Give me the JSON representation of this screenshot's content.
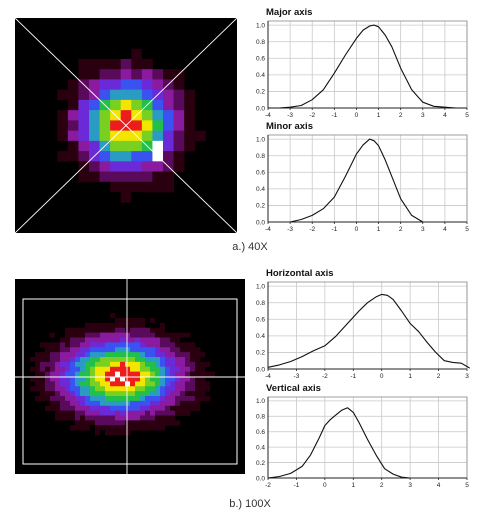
{
  "panels": [
    {
      "caption": "a.) 40X",
      "heatmap": {
        "type": "heatmap",
        "grid_size": 21,
        "center": [
          10.6,
          10.4
        ],
        "sigma": [
          3.2,
          3.2
        ],
        "overlay": "diagonal-cross",
        "hot_spots": [
          [
            13,
            12,
            1.06
          ],
          [
            13,
            13,
            1.1
          ]
        ],
        "palette": [
          "#000000",
          "#2a0010",
          "#5a0a5a",
          "#8a1aa0",
          "#6a2ad8",
          "#3a52f0",
          "#2a9cc4",
          "#22c048",
          "#7ad020",
          "#f2e600",
          "#ee1d1d",
          "#ffffff"
        ]
      },
      "charts": [
        {
          "type": "line",
          "title": "Major axis",
          "xticks": [
            -4,
            -3,
            -2,
            -1,
            0,
            1,
            2,
            3,
            4,
            5
          ],
          "yticks": [
            0.0,
            0.2,
            0.4,
            0.6,
            0.8,
            1.0
          ],
          "ylim": [
            0,
            1.05
          ],
          "series": [
            {
              "x": [
                -4,
                -3.5,
                -3,
                -2.5,
                -2,
                -1.5,
                -1,
                -0.5,
                0,
                0.3,
                0.6,
                0.8,
                1.0,
                1.3,
                1.6,
                2.0,
                2.5,
                3.0,
                3.5,
                4.0,
                4.5,
                5.0
              ],
              "y": [
                0,
                0,
                0.01,
                0.03,
                0.1,
                0.22,
                0.42,
                0.64,
                0.84,
                0.94,
                0.99,
                1.0,
                0.98,
                0.88,
                0.74,
                0.48,
                0.22,
                0.07,
                0.02,
                0.01,
                0,
                0
              ]
            }
          ]
        },
        {
          "type": "line",
          "title": "Minor axis",
          "xticks": [
            -4,
            -3,
            -2,
            -1,
            0,
            1,
            2,
            3,
            4,
            5
          ],
          "yticks": [
            0.0,
            0.2,
            0.4,
            0.6,
            0.8,
            1.0
          ],
          "ylim": [
            0,
            1.05
          ],
          "series": [
            {
              "x": [
                -3,
                -2.5,
                -2,
                -1.5,
                -1,
                -0.5,
                0,
                0.3,
                0.6,
                0.8,
                1.0,
                1.3,
                1.6,
                2.0,
                2.5,
                3.0
              ],
              "y": [
                0.0,
                0.03,
                0.08,
                0.16,
                0.3,
                0.55,
                0.82,
                0.93,
                1.0,
                0.98,
                0.92,
                0.75,
                0.55,
                0.28,
                0.08,
                0.0
              ]
            }
          ]
        }
      ]
    },
    {
      "caption": "b.) 100X",
      "heatmap": {
        "type": "heatmap",
        "grid_size_x": 46,
        "grid_size_y": 40,
        "center": [
          21.0,
          20.0
        ],
        "sigma": [
          8.5,
          5.5
        ],
        "overlay": "crosshair-box",
        "hot_spots": [
          [
            19,
            20,
            1.08
          ],
          [
            20,
            19,
            1.1
          ],
          [
            22,
            21,
            1.08
          ],
          [
            21,
            20,
            1.12
          ],
          [
            24,
            20,
            0.97
          ]
        ],
        "palette": [
          "#000000",
          "#2a0010",
          "#5a0a5a",
          "#8a1aa0",
          "#6a2ad8",
          "#3a52f0",
          "#2a9cc4",
          "#22c048",
          "#7ad020",
          "#f2e600",
          "#ee1d1d",
          "#ffffff"
        ]
      },
      "charts": [
        {
          "type": "line",
          "title": "Horizontal axis",
          "xticks": [
            -4,
            -3,
            -2,
            -1,
            0,
            1,
            2,
            3
          ],
          "yticks": [
            0.0,
            0.2,
            0.4,
            0.6,
            0.8,
            1.0
          ],
          "ylim": [
            0,
            1.05
          ],
          "series": [
            {
              "x": [
                -4,
                -3.6,
                -3.2,
                -2.8,
                -2.4,
                -2.0,
                -1.6,
                -1.2,
                -0.8,
                -0.5,
                -0.2,
                0,
                0.2,
                0.4,
                0.7,
                1.0,
                1.3,
                1.6,
                1.9,
                2.2,
                2.5,
                2.8,
                3.0,
                3.1
              ],
              "y": [
                0.02,
                0.05,
                0.09,
                0.15,
                0.22,
                0.28,
                0.4,
                0.55,
                0.7,
                0.8,
                0.87,
                0.9,
                0.89,
                0.84,
                0.7,
                0.55,
                0.45,
                0.32,
                0.2,
                0.1,
                0.08,
                0.07,
                0.03,
                0.01
              ]
            }
          ]
        },
        {
          "type": "line",
          "title": "Vertical axis",
          "xticks": [
            -2,
            -1,
            0,
            1,
            2,
            3,
            4,
            5
          ],
          "yticks": [
            0.0,
            0.2,
            0.4,
            0.6,
            0.8,
            1.0
          ],
          "ylim": [
            0,
            1.05
          ],
          "series": [
            {
              "x": [
                -2,
                -1.6,
                -1.2,
                -0.8,
                -0.5,
                -0.2,
                0,
                0.2,
                0.4,
                0.6,
                0.8,
                1.0,
                1.2,
                1.5,
                1.8,
                2.1,
                2.4,
                2.7,
                3.0
              ],
              "y": [
                0.0,
                0.02,
                0.06,
                0.15,
                0.3,
                0.52,
                0.68,
                0.76,
                0.82,
                0.88,
                0.91,
                0.85,
                0.72,
                0.5,
                0.3,
                0.12,
                0.05,
                0.01,
                0.0
              ]
            }
          ]
        }
      ]
    }
  ]
}
